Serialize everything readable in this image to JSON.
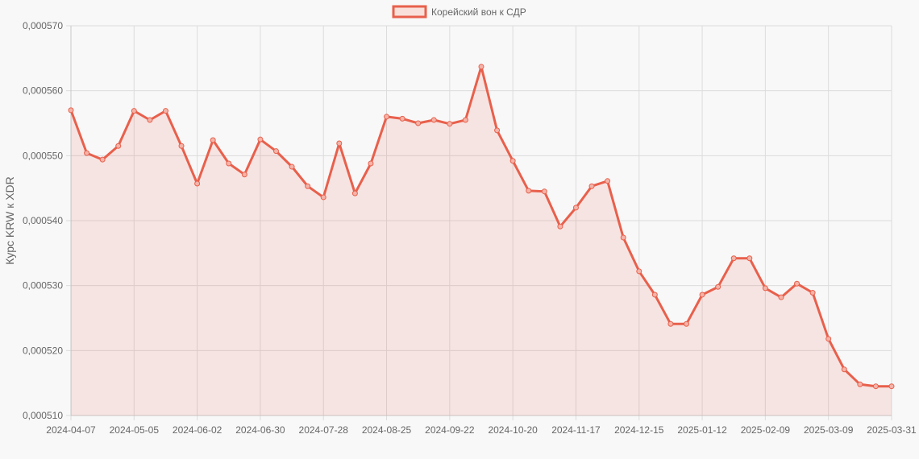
{
  "chart_data": {
    "type": "line",
    "title": "",
    "xlabel": "",
    "ylabel": "Курс KRW к XDR",
    "ylim": [
      0.00051,
      0.00057
    ],
    "yticks": [
      "0,000570",
      "0,000560",
      "0,000550",
      "0,000540",
      "0,000530",
      "0,000520",
      "0,000510"
    ],
    "ytick_values": [
      0.00057,
      0.00056,
      0.00055,
      0.00054,
      0.00053,
      0.00052,
      0.00051
    ],
    "xtick_labels": [
      "2024-04-07",
      "2024-05-05",
      "2024-06-02",
      "2024-06-30",
      "2024-07-28",
      "2024-08-25",
      "2024-09-22",
      "2024-10-20",
      "2024-11-17",
      "2024-12-15",
      "2025-01-12",
      "2025-02-09",
      "2025-03-09",
      "2025-03-31"
    ],
    "xtick_indices": [
      0,
      4,
      8,
      12,
      16,
      20,
      24,
      28,
      32,
      36,
      40,
      44,
      48,
      52
    ],
    "grid": true,
    "legend_position": "top",
    "series": [
      {
        "name": "Корейский вон к СДР",
        "color": "#e8604c",
        "fill": "rgba(232,96,76,0.13)",
        "x": [
          "2024-04-07",
          "2024-04-14",
          "2024-04-21",
          "2024-04-28",
          "2024-05-05",
          "2024-05-12",
          "2024-05-19",
          "2024-05-26",
          "2024-06-02",
          "2024-06-09",
          "2024-06-16",
          "2024-06-23",
          "2024-06-30",
          "2024-07-07",
          "2024-07-14",
          "2024-07-21",
          "2024-07-28",
          "2024-08-04",
          "2024-08-11",
          "2024-08-18",
          "2024-08-25",
          "2024-09-01",
          "2024-09-08",
          "2024-09-15",
          "2024-09-22",
          "2024-09-29",
          "2024-10-06",
          "2024-10-13",
          "2024-10-20",
          "2024-10-27",
          "2024-11-03",
          "2024-11-10",
          "2024-11-17",
          "2024-11-24",
          "2024-12-01",
          "2024-12-08",
          "2024-12-15",
          "2024-12-22",
          "2024-12-29",
          "2025-01-05",
          "2025-01-12",
          "2025-01-19",
          "2025-01-26",
          "2025-02-02",
          "2025-02-09",
          "2025-02-16",
          "2025-02-23",
          "2025-03-02",
          "2025-03-09",
          "2025-03-16",
          "2025-03-23",
          "2025-03-30",
          "2025-03-31"
        ],
        "values": [
          0.000557,
          0.0005504,
          0.0005494,
          0.0005515,
          0.0005569,
          0.0005555,
          0.0005569,
          0.0005515,
          0.0005457,
          0.0005524,
          0.0005488,
          0.0005471,
          0.0005525,
          0.0005507,
          0.0005483,
          0.0005453,
          0.0005436,
          0.0005519,
          0.0005442,
          0.0005488,
          0.000556,
          0.0005557,
          0.000555,
          0.0005555,
          0.0005549,
          0.0005555,
          0.0005637,
          0.0005539,
          0.0005492,
          0.0005446,
          0.0005445,
          0.0005391,
          0.000542,
          0.0005453,
          0.0005461,
          0.0005374,
          0.0005322,
          0.0005286,
          0.0005241,
          0.0005241,
          0.0005286,
          0.0005298,
          0.0005342,
          0.0005342,
          0.0005296,
          0.0005282,
          0.0005303,
          0.0005289,
          0.0005218,
          0.0005171,
          0.0005148,
          0.0005145,
          0.0005145
        ]
      }
    ]
  },
  "legend": {
    "label": "Корейский вон к СДР"
  },
  "axes": {
    "ylabel": "Курс KRW к XDR"
  }
}
